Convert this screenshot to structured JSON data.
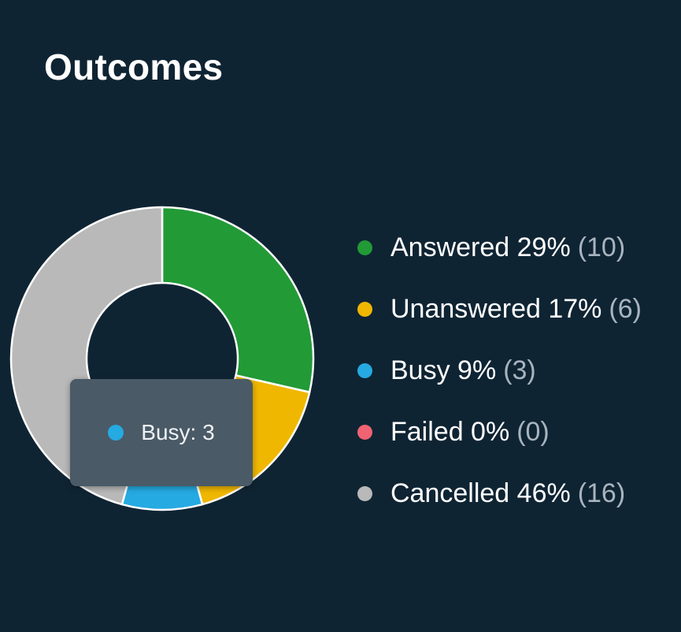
{
  "card": {
    "title": "Outcomes"
  },
  "chart_data": {
    "type": "pie",
    "variant": "donut",
    "title": "Outcomes",
    "categories": [
      "Answered",
      "Unanswered",
      "Busy",
      "Failed",
      "Cancelled"
    ],
    "values": [
      10,
      6,
      3,
      0,
      16
    ],
    "percent_labels": [
      "29%",
      "17%",
      "9%",
      "0%",
      "46%"
    ],
    "count_labels": [
      "(10)",
      "(6)",
      "(3)",
      "(0)",
      "(16)"
    ],
    "colors": [
      "#229a36",
      "#efb700",
      "#25aae2",
      "#f06372",
      "#b9b9b9"
    ],
    "legend_position": "right",
    "legend": [
      {
        "label": "Answered 29%",
        "count": "(10)",
        "color": "#229a36"
      },
      {
        "label": "Unanswered 17%",
        "count": "(6)",
        "color": "#efb700"
      },
      {
        "label": "Busy 9%",
        "count": "(3)",
        "color": "#25aae2"
      },
      {
        "label": "Failed 0%",
        "count": "(0)",
        "color": "#f06372"
      },
      {
        "label": "Cancelled 46%",
        "count": "(16)",
        "color": "#b9b9b9"
      }
    ]
  },
  "tooltip": {
    "text": "Busy: 3",
    "color": "#25aae2"
  },
  "colors": {
    "background": "#0f2433",
    "slice_border": "#ffffff"
  }
}
